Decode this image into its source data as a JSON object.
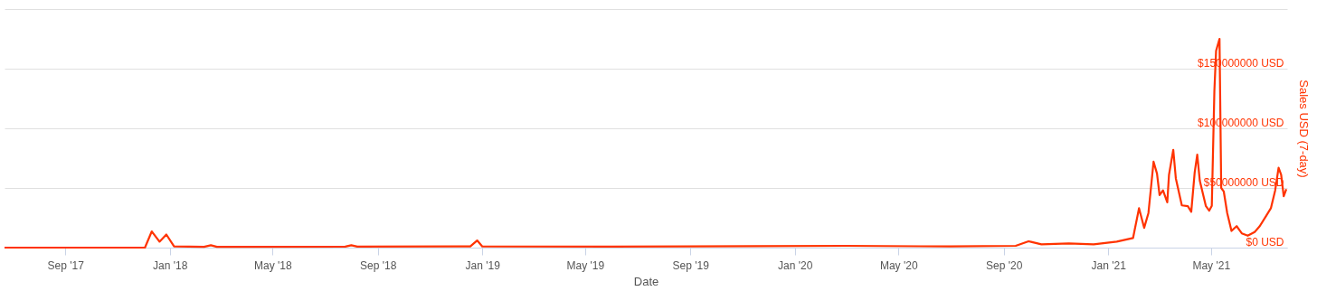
{
  "chart_data": {
    "type": "line",
    "xlabel": "Date",
    "y2label": "Sales USD (7-day)",
    "grid": "y",
    "marker": "none",
    "line_style": "solid",
    "xlim": [
      "2017-06-22",
      "2021-07-29"
    ],
    "xticks": [
      {
        "value": "2017-09-01",
        "label": "Sep '17"
      },
      {
        "value": "2018-01-01",
        "label": "Jan '18"
      },
      {
        "value": "2018-05-01",
        "label": "May '18"
      },
      {
        "value": "2018-09-01",
        "label": "Sep '18"
      },
      {
        "value": "2019-01-01",
        "label": "Jan '19"
      },
      {
        "value": "2019-05-01",
        "label": "May '19"
      },
      {
        "value": "2019-09-01",
        "label": "Sep '19"
      },
      {
        "value": "2020-01-01",
        "label": "Jan '20"
      },
      {
        "value": "2020-05-01",
        "label": "May '20"
      },
      {
        "value": "2020-09-01",
        "label": "Sep '20"
      },
      {
        "value": "2021-01-01",
        "label": "Jan '21"
      },
      {
        "value": "2021-05-01",
        "label": "May '21"
      }
    ],
    "y2lim": [
      0,
      200000000
    ],
    "y2ticks": [
      {
        "value": 0,
        "label": "$0 USD"
      },
      {
        "value": 50000000,
        "label": "$50000000 USD"
      },
      {
        "value": 100000000,
        "label": "$100000000 USD"
      },
      {
        "value": 150000000,
        "label": "$150000000 USD"
      },
      {
        "value": 200000000,
        "label": null
      }
    ],
    "series": [
      {
        "color": "#ff3300",
        "axis": "y2",
        "x": [
          "2017-06-22",
          "2017-12-03",
          "2017-12-11",
          "2017-12-20",
          "2017-12-28",
          "2018-01-06",
          "2018-02-10",
          "2018-02-18",
          "2018-02-25",
          "2018-07-25",
          "2018-08-01",
          "2018-08-08",
          "2018-12-18",
          "2018-12-26",
          "2019-01-01",
          "2019-06-01",
          "2019-11-15",
          "2020-03-01",
          "2020-07-01",
          "2020-09-15",
          "2020-09-30",
          "2020-10-03",
          "2020-10-15",
          "2020-11-16",
          "2020-12-15",
          "2021-01-11",
          "2021-01-30",
          "2021-02-06",
          "2021-02-12",
          "2021-02-17",
          "2021-02-23",
          "2021-02-27",
          "2021-03-02",
          "2021-03-06",
          "2021-03-11",
          "2021-03-13",
          "2021-03-18",
          "2021-03-21",
          "2021-03-28",
          "2021-04-04",
          "2021-04-08",
          "2021-04-12",
          "2021-04-15",
          "2021-04-18",
          "2021-04-25",
          "2021-04-29",
          "2021-05-02",
          "2021-05-05",
          "2021-05-07",
          "2021-05-11",
          "2021-05-13",
          "2021-05-16",
          "2021-05-20",
          "2021-05-25",
          "2021-05-31",
          "2021-06-06",
          "2021-06-13",
          "2021-06-21",
          "2021-06-27",
          "2021-07-04",
          "2021-07-10",
          "2021-07-15",
          "2021-07-19",
          "2021-07-22",
          "2021-07-25",
          "2021-07-28"
        ],
        "values": [
          0,
          0,
          13600000,
          5000000,
          11000000,
          1000000,
          700000,
          2000000,
          700000,
          800000,
          2000000,
          800000,
          1000000,
          6000000,
          1000000,
          800000,
          1200000,
          1500000,
          1000000,
          1500000,
          5300000,
          4800000,
          2700000,
          3500000,
          2700000,
          5000000,
          8000000,
          33000000,
          16600000,
          29000000,
          72000000,
          62000000,
          44000000,
          48000000,
          38000000,
          61000000,
          82000000,
          58000000,
          35400000,
          34700000,
          30000000,
          63000000,
          78000000,
          56000000,
          35000000,
          31000000,
          35000000,
          131000000,
          165000000,
          175000000,
          50000000,
          47000000,
          29000000,
          14000000,
          18000000,
          12000000,
          10000000,
          13000000,
          18000000,
          26000000,
          33000000,
          48000000,
          67000000,
          61000000,
          43000000,
          49000000
        ]
      }
    ]
  }
}
